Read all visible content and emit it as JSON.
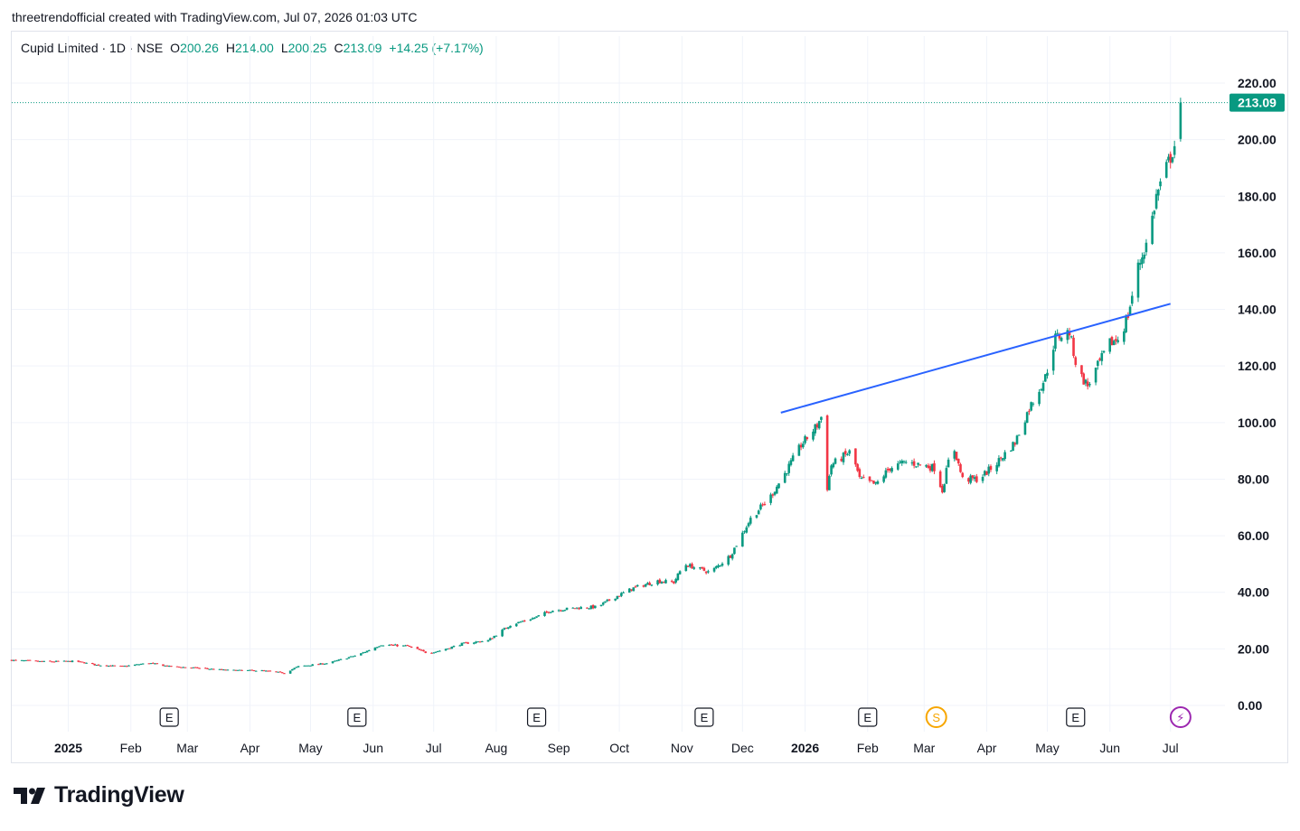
{
  "caption": "threetrendofficial created with TradingView.com, Jul 07, 2026 01:03 UTC",
  "legend": {
    "symbol": "Cupid Limited · 1D · NSE",
    "o_label": "O",
    "o_value": "200.26",
    "h_label": "H",
    "h_value": "214.00",
    "l_label": "L",
    "l_value": "200.25",
    "c_label": "C",
    "c_value": "213.09",
    "change": "+14.25 (+7.17%)"
  },
  "brand": {
    "name": "TradingView"
  },
  "colors": {
    "up": "#089981",
    "down": "#f23645",
    "trendline": "#2962ff",
    "grid": "#f0f3fa",
    "earnings": "#131722",
    "split": "#f7a600",
    "dividend": "#9c27b0"
  },
  "chart_data": {
    "type": "candlestick",
    "title": "",
    "yticks": [
      "0.00",
      "20.00",
      "40.00",
      "60.00",
      "80.00",
      "100.00",
      "120.00",
      "140.00",
      "160.00",
      "180.00",
      "200.00",
      "220.00"
    ],
    "ylim": [
      0,
      220
    ],
    "last_price_label": "213.09",
    "xticks": [
      {
        "label": "2025",
        "bold": true,
        "date": "2025-01-01"
      },
      {
        "label": "Feb",
        "date": "2025-02-01"
      },
      {
        "label": "Mar",
        "date": "2025-03-01"
      },
      {
        "label": "Apr",
        "date": "2025-04-01"
      },
      {
        "label": "May",
        "date": "2025-05-01"
      },
      {
        "label": "Jun",
        "date": "2025-06-01"
      },
      {
        "label": "Jul",
        "date": "2025-07-01"
      },
      {
        "label": "Aug",
        "date": "2025-08-01"
      },
      {
        "label": "Sep",
        "date": "2025-09-01"
      },
      {
        "label": "Oct",
        "date": "2025-10-01"
      },
      {
        "label": "Nov",
        "date": "2025-11-01"
      },
      {
        "label": "Dec",
        "date": "2025-12-01"
      },
      {
        "label": "2026",
        "bold": true,
        "date": "2026-01-01"
      },
      {
        "label": "Feb",
        "date": "2026-02-01"
      },
      {
        "label": "Mar",
        "date": "2026-03-01"
      },
      {
        "label": "Apr",
        "date": "2026-04-01"
      },
      {
        "label": "May",
        "date": "2026-05-01"
      },
      {
        "label": "Jun",
        "date": "2026-06-01"
      },
      {
        "label": "Jul",
        "date": "2026-07-01"
      }
    ],
    "xlim": [
      "2024-12-04",
      "2026-07-28"
    ],
    "events": [
      {
        "type": "earnings",
        "label": "E",
        "date": "2025-02-20"
      },
      {
        "type": "earnings",
        "label": "E",
        "date": "2025-05-24"
      },
      {
        "type": "earnings",
        "label": "E",
        "date": "2025-08-21"
      },
      {
        "type": "earnings",
        "label": "E",
        "date": "2025-11-12"
      },
      {
        "type": "earnings",
        "label": "E",
        "date": "2026-02-01"
      },
      {
        "type": "split",
        "label": "S",
        "date": "2026-03-07"
      },
      {
        "type": "earnings",
        "label": "E",
        "date": "2026-05-15"
      },
      {
        "type": "dividend",
        "label": "⚡",
        "date": "2026-07-06"
      }
    ],
    "trendline": {
      "start": {
        "date": "2025-12-20",
        "price": 103.5
      },
      "end": {
        "date": "2026-07-01",
        "price": 142
      }
    },
    "close_path": [
      [
        "2024-12-04",
        16.0
      ],
      [
        "2024-12-20",
        15.5
      ],
      [
        "2025-01-05",
        15.6
      ],
      [
        "2025-01-15",
        14.3
      ],
      [
        "2025-01-28",
        13.8
      ],
      [
        "2025-02-10",
        15.0
      ],
      [
        "2025-02-20",
        13.8
      ],
      [
        "2025-03-05",
        13.3
      ],
      [
        "2025-03-20",
        12.5
      ],
      [
        "2025-04-07",
        12.3
      ],
      [
        "2025-04-18",
        11.5
      ],
      [
        "2025-04-25",
        13.8
      ],
      [
        "2025-05-10",
        15.0
      ],
      [
        "2025-05-25",
        18.0
      ],
      [
        "2025-06-05",
        21.5
      ],
      [
        "2025-06-18",
        21.0
      ],
      [
        "2025-06-28",
        18.5
      ],
      [
        "2025-07-05",
        19.5
      ],
      [
        "2025-07-15",
        21.8
      ],
      [
        "2025-07-28",
        23.0
      ],
      [
        "2025-08-08",
        28.5
      ],
      [
        "2025-08-20",
        31.0
      ],
      [
        "2025-08-28",
        33.5
      ],
      [
        "2025-09-10",
        34.5
      ],
      [
        "2025-09-20",
        34.8
      ],
      [
        "2025-09-28",
        38.0
      ],
      [
        "2025-10-08",
        41.5
      ],
      [
        "2025-10-20",
        44.0
      ],
      [
        "2025-10-28",
        43.5
      ],
      [
        "2025-11-02",
        50.0
      ],
      [
        "2025-11-15",
        47.0
      ],
      [
        "2025-11-25",
        53.0
      ],
      [
        "2025-12-05",
        66.0
      ],
      [
        "2025-12-15",
        74.0
      ],
      [
        "2025-12-22",
        82.0
      ],
      [
        "2025-12-30",
        92.0
      ],
      [
        "2026-01-07",
        99.0
      ],
      [
        "2026-01-09",
        102.0
      ],
      [
        "2026-01-11",
        73.0
      ],
      [
        "2026-01-14",
        85.0
      ],
      [
        "2026-01-24",
        90.0
      ],
      [
        "2026-01-28",
        80.0
      ],
      [
        "2026-02-05",
        78.0
      ],
      [
        "2026-02-12",
        84.0
      ],
      [
        "2026-02-20",
        86.0
      ],
      [
        "2026-02-28",
        85.0
      ],
      [
        "2026-03-06",
        84.0
      ],
      [
        "2026-03-10",
        76.0
      ],
      [
        "2026-03-15",
        93.0
      ],
      [
        "2026-03-20",
        80.0
      ],
      [
        "2026-03-28",
        80.0
      ],
      [
        "2026-04-05",
        85.0
      ],
      [
        "2026-04-15",
        93.0
      ],
      [
        "2026-04-22",
        105.0
      ],
      [
        "2026-04-30",
        116.0
      ],
      [
        "2026-05-05",
        130.0
      ],
      [
        "2026-05-12",
        132.0
      ],
      [
        "2026-05-16",
        118.0
      ],
      [
        "2026-05-21",
        113.0
      ],
      [
        "2026-05-26",
        120.0
      ],
      [
        "2026-06-01",
        128.0
      ],
      [
        "2026-06-06",
        130.0
      ],
      [
        "2026-06-10",
        138.0
      ],
      [
        "2026-06-15",
        155.0
      ],
      [
        "2026-06-20",
        165.0
      ],
      [
        "2026-06-24",
        180.0
      ],
      [
        "2026-06-29",
        190.0
      ],
      [
        "2026-07-03",
        198.0
      ],
      [
        "2026-07-06",
        213.09
      ]
    ]
  }
}
